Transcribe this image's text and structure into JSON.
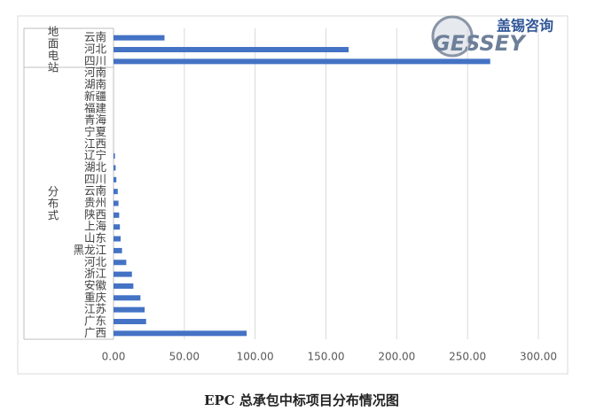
{
  "chart_data": {
    "type": "bar",
    "orientation": "horizontal",
    "title": "EPC 总承包中标项目分布情况图",
    "groups": [
      {
        "name": "地面电站",
        "categories": [
          "云南",
          "河北",
          "四川"
        ],
        "values": [
          36,
          166,
          266
        ]
      },
      {
        "name": "分布式",
        "categories": [
          "河南",
          "湖南",
          "新疆",
          "福建",
          "青海",
          "宁夏",
          "江西",
          "辽宁",
          "湖北",
          "四川",
          "云南",
          "贵州",
          "陕西",
          "上海",
          "山东",
          "黑龙江",
          "河北",
          "浙江",
          "安徽",
          "重庆",
          "江苏",
          "广东",
          "广西"
        ],
        "values": [
          0,
          0,
          0,
          0,
          0,
          0,
          0,
          1,
          1.5,
          2,
          3,
          3.5,
          4,
          4.5,
          5,
          6,
          9,
          13,
          14,
          19,
          22,
          23,
          94
        ]
      }
    ],
    "color": "#4472c4",
    "xlim": [
      0,
      300
    ],
    "xticks": [
      {
        "value": 0,
        "label": "0.00"
      },
      {
        "value": 50,
        "label": "50.00"
      },
      {
        "value": 100,
        "label": "100.00"
      },
      {
        "value": 150,
        "label": "150.00"
      },
      {
        "value": 200,
        "label": "200.00"
      },
      {
        "value": 250,
        "label": "250.00"
      },
      {
        "value": 300,
        "label": "300.00"
      }
    ],
    "grid": true
  },
  "logo": {
    "name": "盖锡咨询",
    "brand": "GESSEY"
  }
}
